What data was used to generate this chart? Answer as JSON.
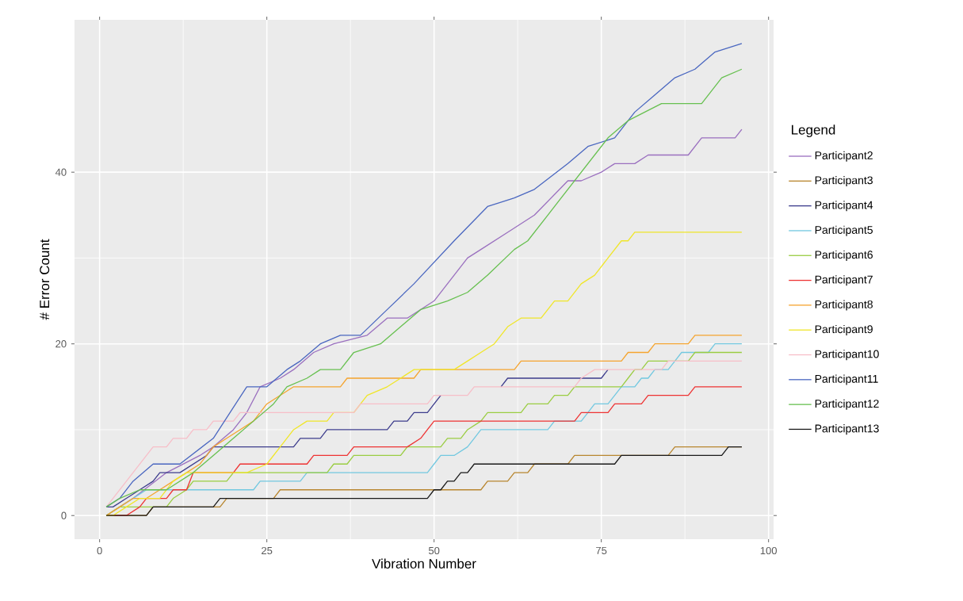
{
  "chart_data": {
    "type": "line",
    "xlabel": "Vibration Number",
    "ylabel": "# Error Count",
    "legend_title": "Legend",
    "xlim": [
      -3.75,
      100.75
    ],
    "ylim": [
      -2.75,
      57.75
    ],
    "xticks": [
      0,
      25,
      50,
      75,
      100
    ],
    "yticks": [
      0,
      20,
      40
    ],
    "grid": true,
    "legend": "right",
    "series": [
      {
        "name": "Participant2",
        "color": "#9a6fbf",
        "x": [
          1,
          5,
          10,
          15,
          17,
          20,
          22,
          24,
          27,
          29,
          32,
          35,
          40,
          43,
          46,
          50,
          55,
          57,
          61,
          65,
          70,
          72,
          75,
          77,
          80,
          82,
          88,
          90,
          95,
          96
        ],
        "values": [
          0,
          2,
          5,
          7,
          8,
          10,
          12,
          15,
          16,
          17,
          19,
          20,
          21,
          23,
          23,
          25,
          30,
          31,
          33,
          35,
          39,
          39,
          40,
          41,
          41,
          42,
          42,
          44,
          44,
          45
        ]
      },
      {
        "name": "Participant3",
        "color": "#b8862f",
        "x": [
          1,
          7,
          8,
          17,
          18,
          19,
          26,
          27,
          57,
          58,
          61,
          62,
          64,
          65,
          70,
          71,
          85,
          86,
          96
        ],
        "values": [
          0,
          0,
          1,
          1,
          1,
          2,
          2,
          3,
          3,
          4,
          4,
          5,
          5,
          6,
          6,
          7,
          7,
          8,
          8
        ]
      },
      {
        "name": "Participant4",
        "color": "#3c3c8c",
        "x": [
          1,
          2,
          4,
          6,
          8,
          9,
          12,
          14,
          16,
          17,
          29,
          30,
          33,
          34,
          43,
          44,
          46,
          47,
          49,
          51,
          55,
          60,
          61,
          75,
          76
        ],
        "values": [
          1,
          1,
          2,
          3,
          4,
          5,
          5,
          6,
          7,
          8,
          8,
          9,
          9,
          10,
          10,
          11,
          11,
          12,
          12,
          14,
          null,
          15,
          16,
          16,
          17
        ]
      },
      {
        "name": "Participant5",
        "color": "#72c8e0",
        "x": [
          1,
          3,
          5,
          7,
          23,
          24,
          30,
          31,
          49,
          50,
          51,
          53,
          55,
          56,
          57,
          67,
          68,
          72,
          73,
          74,
          76,
          78,
          80,
          81,
          82,
          83,
          85,
          86,
          87,
          91,
          92,
          96
        ],
        "values": [
          0,
          1,
          2,
          3,
          3,
          4,
          4,
          5,
          5,
          6,
          7,
          7,
          8,
          9,
          10,
          10,
          11,
          11,
          12,
          13,
          13,
          15,
          15,
          16,
          16,
          17,
          17,
          18,
          19,
          19,
          20,
          20
        ]
      },
      {
        "name": "Participant6",
        "color": "#9acd42",
        "x": [
          1,
          3,
          10,
          11,
          13,
          14,
          19,
          20,
          34,
          35,
          37,
          38,
          45,
          46,
          51,
          52,
          54,
          55,
          57,
          58,
          63,
          64,
          67,
          68,
          70,
          71,
          78,
          79,
          80,
          81,
          82,
          88,
          89,
          96
        ],
        "values": [
          0,
          1,
          1,
          2,
          3,
          4,
          4,
          5,
          5,
          6,
          6,
          7,
          7,
          8,
          8,
          9,
          9,
          10,
          11,
          12,
          12,
          13,
          13,
          14,
          14,
          15,
          15,
          16,
          17,
          17,
          18,
          18,
          19,
          19
        ]
      },
      {
        "name": "Participant7",
        "color": "#ee3333",
        "x": [
          1,
          4,
          6,
          7,
          10,
          11,
          13,
          14,
          20,
          21,
          31,
          32,
          37,
          38,
          46,
          48,
          49,
          50,
          71,
          72,
          76,
          77,
          81,
          82,
          88,
          89,
          96
        ],
        "values": [
          0,
          0,
          1,
          2,
          2,
          3,
          3,
          5,
          5,
          6,
          6,
          7,
          7,
          8,
          8,
          9,
          10,
          11,
          11,
          12,
          12,
          13,
          13,
          14,
          14,
          15,
          15
        ]
      },
      {
        "name": "Participant8",
        "color": "#f5a42e",
        "x": [
          1,
          3,
          5,
          7,
          9,
          11,
          13,
          15,
          17,
          19,
          21,
          23,
          25,
          27,
          29,
          36,
          37,
          47,
          48,
          62,
          63,
          78,
          79,
          82,
          83,
          88,
          89,
          96
        ],
        "values": [
          0,
          1,
          2,
          2,
          3,
          4,
          5,
          6,
          8,
          9,
          10,
          11,
          13,
          14,
          15,
          15,
          16,
          16,
          17,
          17,
          18,
          18,
          19,
          19,
          20,
          20,
          21,
          21
        ]
      },
      {
        "name": "Participant9",
        "color": "#f0e628",
        "x": [
          1,
          2,
          4,
          6,
          9,
          11,
          13,
          15,
          22,
          25,
          27,
          29,
          31,
          34,
          35,
          38,
          40,
          43,
          45,
          47,
          53,
          55,
          57,
          59,
          61,
          63,
          66,
          68,
          70,
          72,
          74,
          76,
          78,
          79,
          80,
          96
        ],
        "values": [
          0,
          0,
          1,
          2,
          2,
          4,
          5,
          5,
          5,
          6,
          8,
          10,
          11,
          11,
          12,
          12,
          14,
          15,
          16,
          17,
          17,
          18,
          19,
          20,
          22,
          23,
          23,
          25,
          25,
          27,
          28,
          30,
          32,
          32,
          33,
          33
        ]
      },
      {
        "name": "Participant10",
        "color": "#f7bec8",
        "x": [
          1,
          2,
          8,
          10,
          11,
          13,
          14,
          16,
          17,
          20,
          21,
          38,
          39,
          49,
          50,
          55,
          56,
          71,
          72,
          74,
          84,
          85,
          96
        ],
        "values": [
          1,
          2,
          8,
          8,
          9,
          9,
          10,
          10,
          11,
          11,
          12,
          12,
          13,
          13,
          14,
          14,
          15,
          15,
          16,
          17,
          17,
          18,
          18
        ]
      },
      {
        "name": "Participant11",
        "color": "#4a67c0",
        "x": [
          1,
          3,
          5,
          8,
          12,
          17,
          22,
          25,
          28,
          30,
          33,
          36,
          39,
          43,
          47,
          53,
          58,
          62,
          65,
          70,
          73,
          77,
          80,
          83,
          86,
          89,
          92,
          96
        ],
        "values": [
          1,
          2,
          4,
          6,
          6,
          9,
          15,
          15,
          17,
          18,
          20,
          21,
          21,
          24,
          27,
          32,
          36,
          37,
          38,
          41,
          43,
          44,
          47,
          49,
          51,
          52,
          54,
          55
        ]
      },
      {
        "name": "Participant12",
        "color": "#67c050",
        "x": [
          1,
          3,
          6,
          10,
          14,
          17,
          20,
          23,
          26,
          28,
          31,
          33,
          36,
          38,
          42,
          45,
          48,
          52,
          55,
          58,
          62,
          64,
          67,
          70,
          73,
          76,
          79,
          84,
          90,
          93,
          96
        ],
        "values": [
          1,
          2,
          3,
          3,
          5,
          7,
          9,
          11,
          13,
          15,
          16,
          17,
          17,
          19,
          20,
          22,
          24,
          25,
          26,
          28,
          31,
          32,
          35,
          38,
          41,
          44,
          46,
          48,
          48,
          51,
          52
        ]
      },
      {
        "name": "Participant13",
        "color": "#1a1a1a",
        "x": [
          1,
          7,
          8,
          17,
          18,
          49,
          50,
          51,
          52,
          53,
          54,
          55,
          56,
          77,
          78,
          93,
          94,
          96
        ],
        "values": [
          0,
          0,
          1,
          1,
          2,
          2,
          3,
          3,
          4,
          4,
          5,
          5,
          6,
          6,
          7,
          7,
          8,
          8
        ]
      }
    ]
  }
}
